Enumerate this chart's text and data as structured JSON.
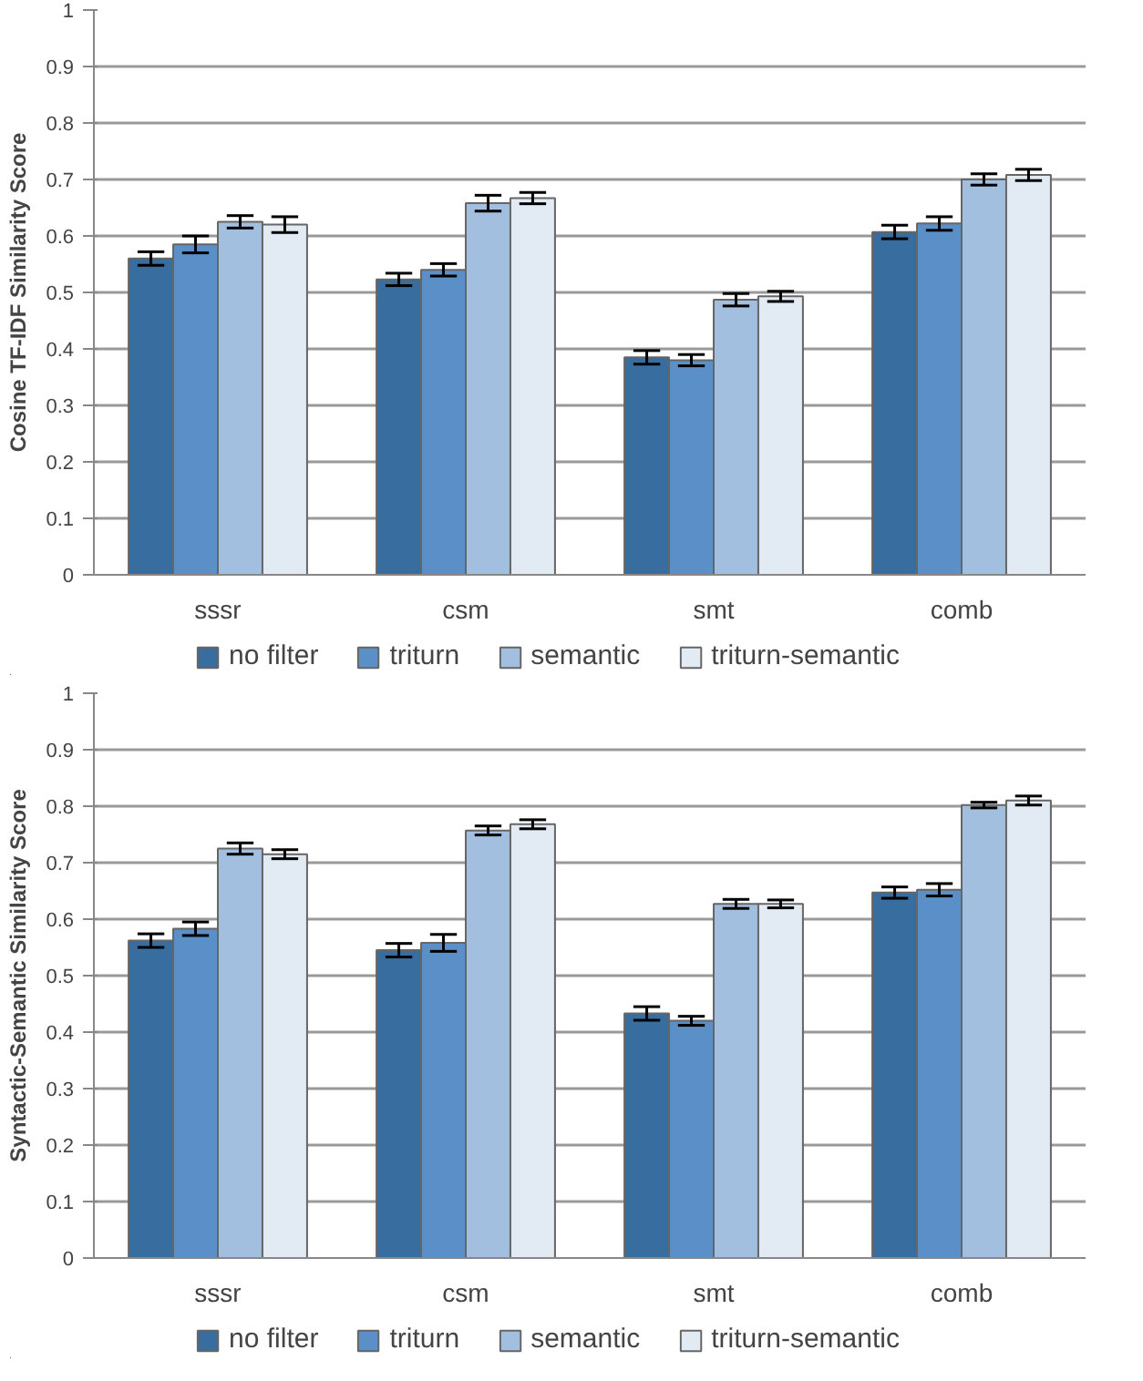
{
  "chart_data": [
    {
      "type": "bar",
      "ylabel": "Cosine TF-IDF Similarity Score",
      "categories": [
        "sssr",
        "csm",
        "smt",
        "comb"
      ],
      "ylim": [
        0,
        1
      ],
      "yticks": [
        0,
        0.1,
        0.2,
        0.3,
        0.4,
        0.5,
        0.6,
        0.7,
        0.8,
        0.9,
        1
      ],
      "grid": "y",
      "legend": "bottom",
      "series": [
        {
          "name": "no filter",
          "color": "#376d9f",
          "values": [
            0.56,
            0.523,
            0.385,
            0.607
          ],
          "errors": [
            0.012,
            0.011,
            0.012,
            0.012
          ]
        },
        {
          "name": "triturn",
          "color": "#5a90c7",
          "values": [
            0.585,
            0.54,
            0.38,
            0.622
          ],
          "errors": [
            0.015,
            0.011,
            0.01,
            0.012
          ]
        },
        {
          "name": "semantic",
          "color": "#a3bfdf",
          "values": [
            0.625,
            0.658,
            0.487,
            0.7
          ],
          "errors": [
            0.011,
            0.014,
            0.011,
            0.01
          ]
        },
        {
          "name": "triturn-semantic",
          "color": "#e2eaf4",
          "values": [
            0.62,
            0.667,
            0.493,
            0.708
          ],
          "errors": [
            0.014,
            0.01,
            0.009,
            0.01
          ]
        }
      ]
    },
    {
      "type": "bar",
      "ylabel": "Syntactic-Semantic Similarity Score",
      "categories": [
        "sssr",
        "csm",
        "smt",
        "comb"
      ],
      "ylim": [
        0,
        1
      ],
      "yticks": [
        0,
        0.1,
        0.2,
        0.3,
        0.4,
        0.5,
        0.6,
        0.7,
        0.8,
        0.9,
        1
      ],
      "grid": "y",
      "legend": "bottom",
      "series": [
        {
          "name": "no filter",
          "color": "#376d9f",
          "values": [
            0.562,
            0.545,
            0.433,
            0.647
          ],
          "errors": [
            0.012,
            0.012,
            0.012,
            0.01
          ]
        },
        {
          "name": "triturn",
          "color": "#5a90c7",
          "values": [
            0.583,
            0.558,
            0.42,
            0.652
          ],
          "errors": [
            0.012,
            0.015,
            0.008,
            0.011
          ]
        },
        {
          "name": "semantic",
          "color": "#a3bfdf",
          "values": [
            0.725,
            0.757,
            0.627,
            0.802
          ],
          "errors": [
            0.01,
            0.008,
            0.008,
            0.005
          ]
        },
        {
          "name": "triturn-semantic",
          "color": "#e2eaf4",
          "values": [
            0.715,
            0.768,
            0.627,
            0.81
          ],
          "errors": [
            0.008,
            0.008,
            0.007,
            0.008
          ]
        }
      ]
    }
  ]
}
